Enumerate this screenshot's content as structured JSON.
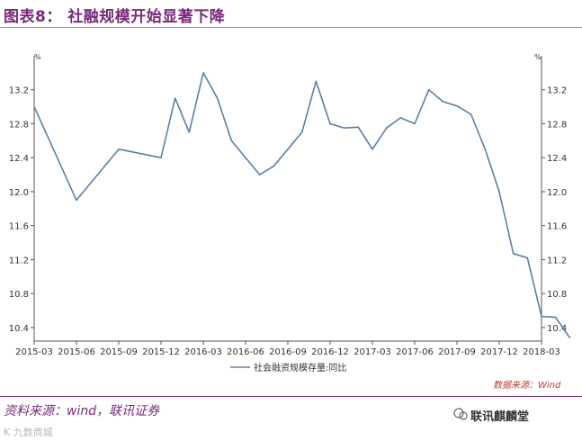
{
  "page": {
    "title": "图表8：  社融规模开始显著下降",
    "source_note": "资料来源：wind，联讯证券",
    "wechat_account": "联讯麒麟堂",
    "watermark": "K 九数商城"
  },
  "chart_data": {
    "type": "line",
    "y_unit_left": "%",
    "y_unit_right": "%",
    "data_source_label": "数据来源：Wind",
    "x_tick_labels": [
      "2015-03",
      "2015-06",
      "2015-09",
      "2015-12",
      "2016-03",
      "2016-06",
      "2016-09",
      "2016-12",
      "2017-03",
      "2017-06",
      "2017-09",
      "2017-12",
      "2018-03"
    ],
    "y_ticks": [
      10.4,
      10.8,
      11.2,
      11.6,
      12.0,
      12.4,
      12.8,
      13.2
    ],
    "y_tick_labels": [
      "10.4",
      "10.8",
      "11.2",
      "11.6",
      "12.0",
      "12.4",
      "12.8",
      "13.2"
    ],
    "ylim": [
      10.24,
      13.6
    ],
    "series": [
      {
        "name": "社会融资规模存量:同比",
        "color": "#5b7fa6",
        "x": [
          "2015-03",
          "2015-06",
          "2015-09",
          "2015-12",
          "2016-01",
          "2016-02",
          "2016-03",
          "2016-04",
          "2016-05",
          "2016-06",
          "2016-07",
          "2016-08",
          "2016-09",
          "2016-10",
          "2016-11",
          "2016-12",
          "2017-01",
          "2017-02",
          "2017-03",
          "2017-04",
          "2017-05",
          "2017-06",
          "2017-07",
          "2017-08",
          "2017-09",
          "2017-10",
          "2017-11",
          "2017-12",
          "2018-01",
          "2018-02",
          "2018-03",
          "2018-04",
          "2018-05"
        ],
        "values": [
          13.0,
          11.9,
          12.5,
          12.4,
          13.1,
          12.7,
          13.4,
          13.1,
          12.6,
          12.4,
          12.2,
          12.3,
          12.5,
          12.7,
          13.3,
          12.8,
          12.75,
          12.76,
          12.5,
          12.75,
          12.87,
          12.8,
          13.2,
          13.06,
          13.01,
          12.91,
          12.5,
          12.0,
          11.27,
          11.22,
          10.53,
          10.52,
          10.28
        ]
      }
    ]
  }
}
